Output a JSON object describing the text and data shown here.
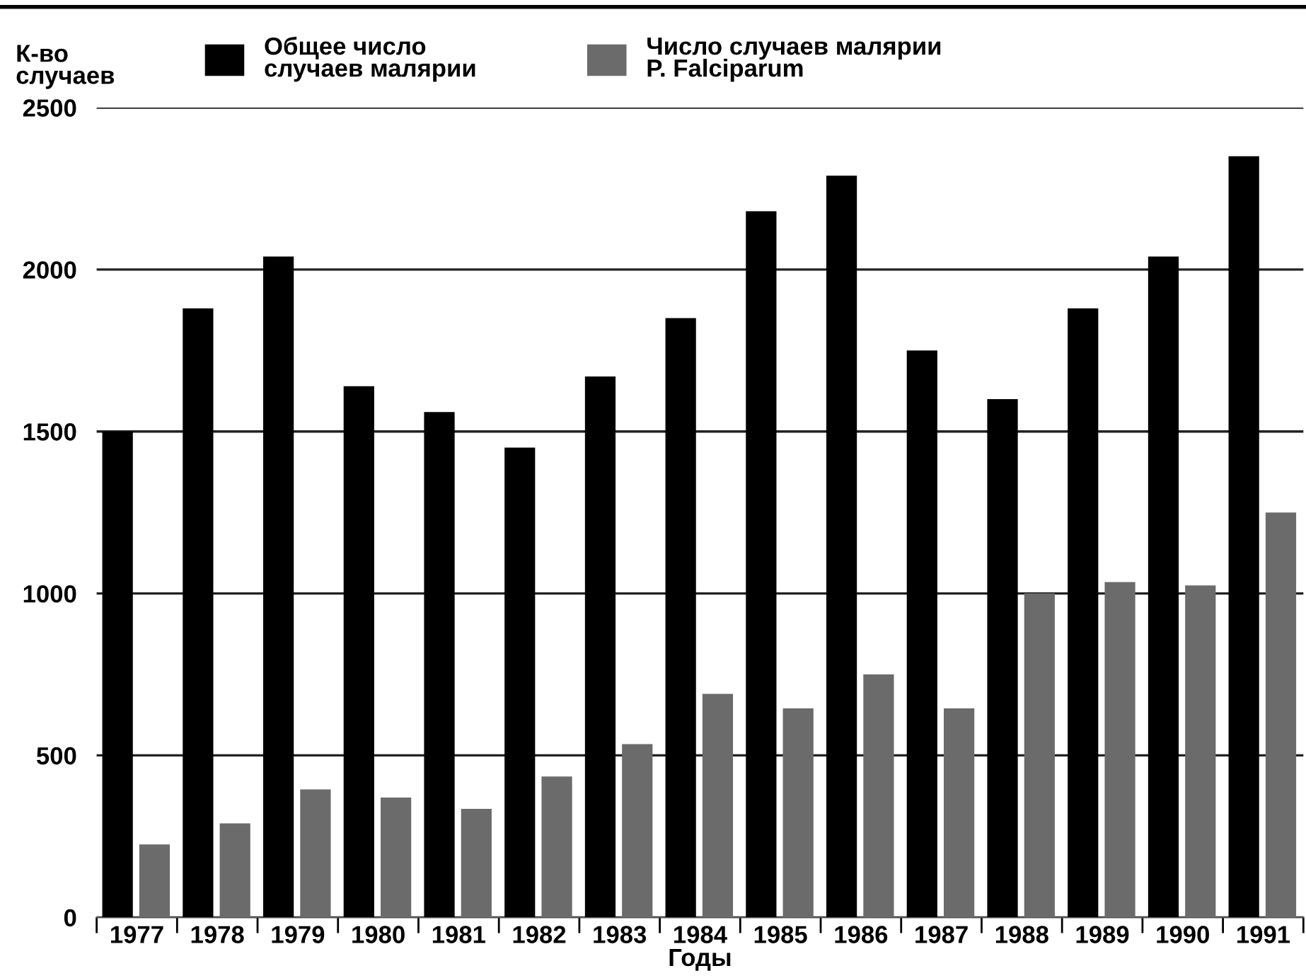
{
  "chart_data": {
    "type": "bar",
    "xlabel": "Годы",
    "ylabel": "К-во\nслучаев",
    "categories": [
      "1977",
      "1978",
      "1979",
      "1980",
      "1981",
      "1982",
      "1983",
      "1984",
      "1985",
      "1986",
      "1987",
      "1988",
      "1989",
      "1990",
      "1991"
    ],
    "series": [
      {
        "name": "Общее число\nслучаев малярии",
        "color": "#000000",
        "values": [
          1500,
          1880,
          2040,
          1640,
          1560,
          1450,
          1670,
          1850,
          2180,
          2290,
          1750,
          1600,
          1880,
          2040,
          2350
        ]
      },
      {
        "name": "Число случаев малярии\nP. Falciparum",
        "color": "#6b6b6b",
        "values": [
          225,
          290,
          395,
          370,
          335,
          435,
          535,
          690,
          645,
          750,
          645,
          1000,
          1035,
          1025,
          1250
        ]
      }
    ],
    "ylim": [
      0,
      2500
    ],
    "yticks": [
      0,
      500,
      1000,
      1500,
      2000,
      2500
    ],
    "grid": "y",
    "legend": "top"
  }
}
